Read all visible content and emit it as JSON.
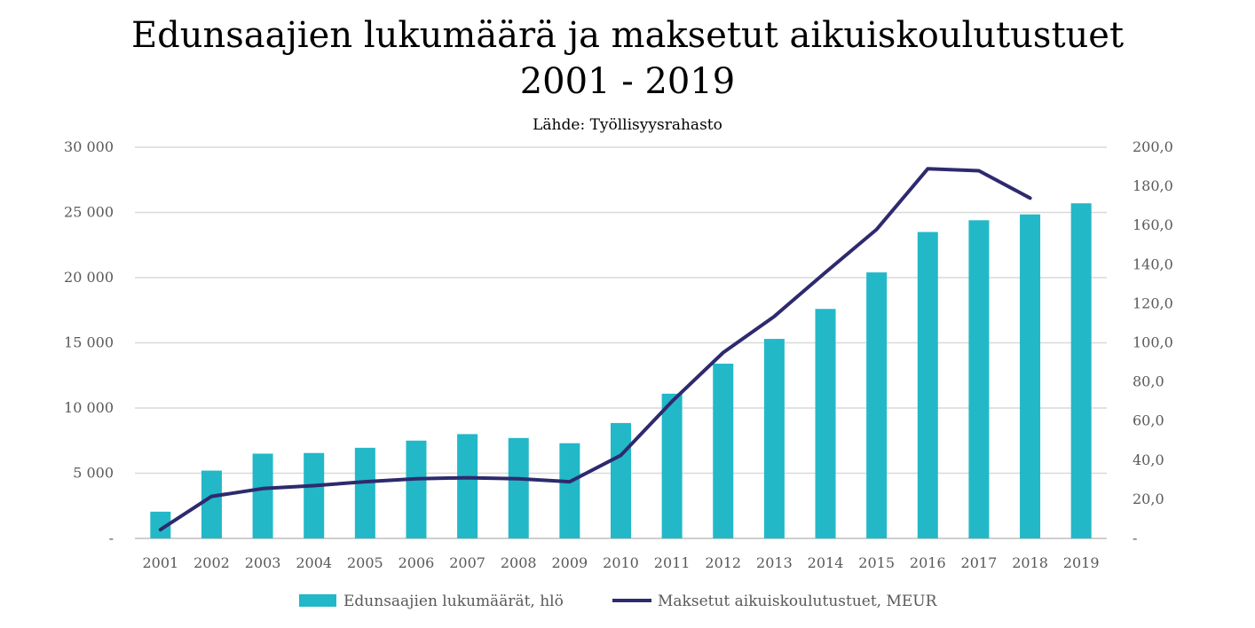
{
  "header": {
    "title_line1": "Edunsaajien lukumäärä ja maksetut aikuiskoulutustuet",
    "title_line2": "2001 - 2019",
    "subtitle": "Lähde: Työllisyysrahasto"
  },
  "colors": {
    "bar": "#22b8c8",
    "line": "#2e2a6e",
    "grid": "#d9d9d9",
    "text": "#595959"
  },
  "chart_data": {
    "type": "bar",
    "categories": [
      "2001",
      "2002",
      "2003",
      "2004",
      "2005",
      "2006",
      "2007",
      "2008",
      "2009",
      "2010",
      "2011",
      "2012",
      "2013",
      "2014",
      "2015",
      "2016",
      "2017",
      "2018",
      "2019"
    ],
    "series": [
      {
        "name": "Edunsaajien lukumäärät, hlö",
        "type": "bar",
        "axis": "left",
        "values": [
          2050,
          5200,
          6500,
          6550,
          6950,
          7500,
          8000,
          7700,
          7300,
          8850,
          11100,
          13400,
          15300,
          17600,
          20400,
          23500,
          24400,
          24850,
          25700
        ]
      },
      {
        "name": "Maksetut aikuiskoulutustuet, MEUR",
        "type": "line",
        "axis": "right",
        "values": [
          4.5,
          21.5,
          25.5,
          27.0,
          29.0,
          30.5,
          31.0,
          30.5,
          29.0,
          42.5,
          70.0,
          95.0,
          113.5,
          136.0,
          158.0,
          189.0,
          188.0,
          174.0,
          null
        ]
      }
    ],
    "yaxis_left": {
      "min": 0,
      "max": 30000,
      "ticks": [
        "-",
        "5 000",
        "10 000",
        "15 000",
        "20 000",
        "25 000",
        "30 000"
      ]
    },
    "yaxis_right": {
      "min": 0,
      "max": 200,
      "ticks": [
        "-",
        "20,0",
        "40,0",
        "60,0",
        "80,0",
        "100,0",
        "120,0",
        "140,0",
        "160,0",
        "180,0",
        "200,0"
      ]
    },
    "grid": true,
    "legend_position": "bottom"
  }
}
